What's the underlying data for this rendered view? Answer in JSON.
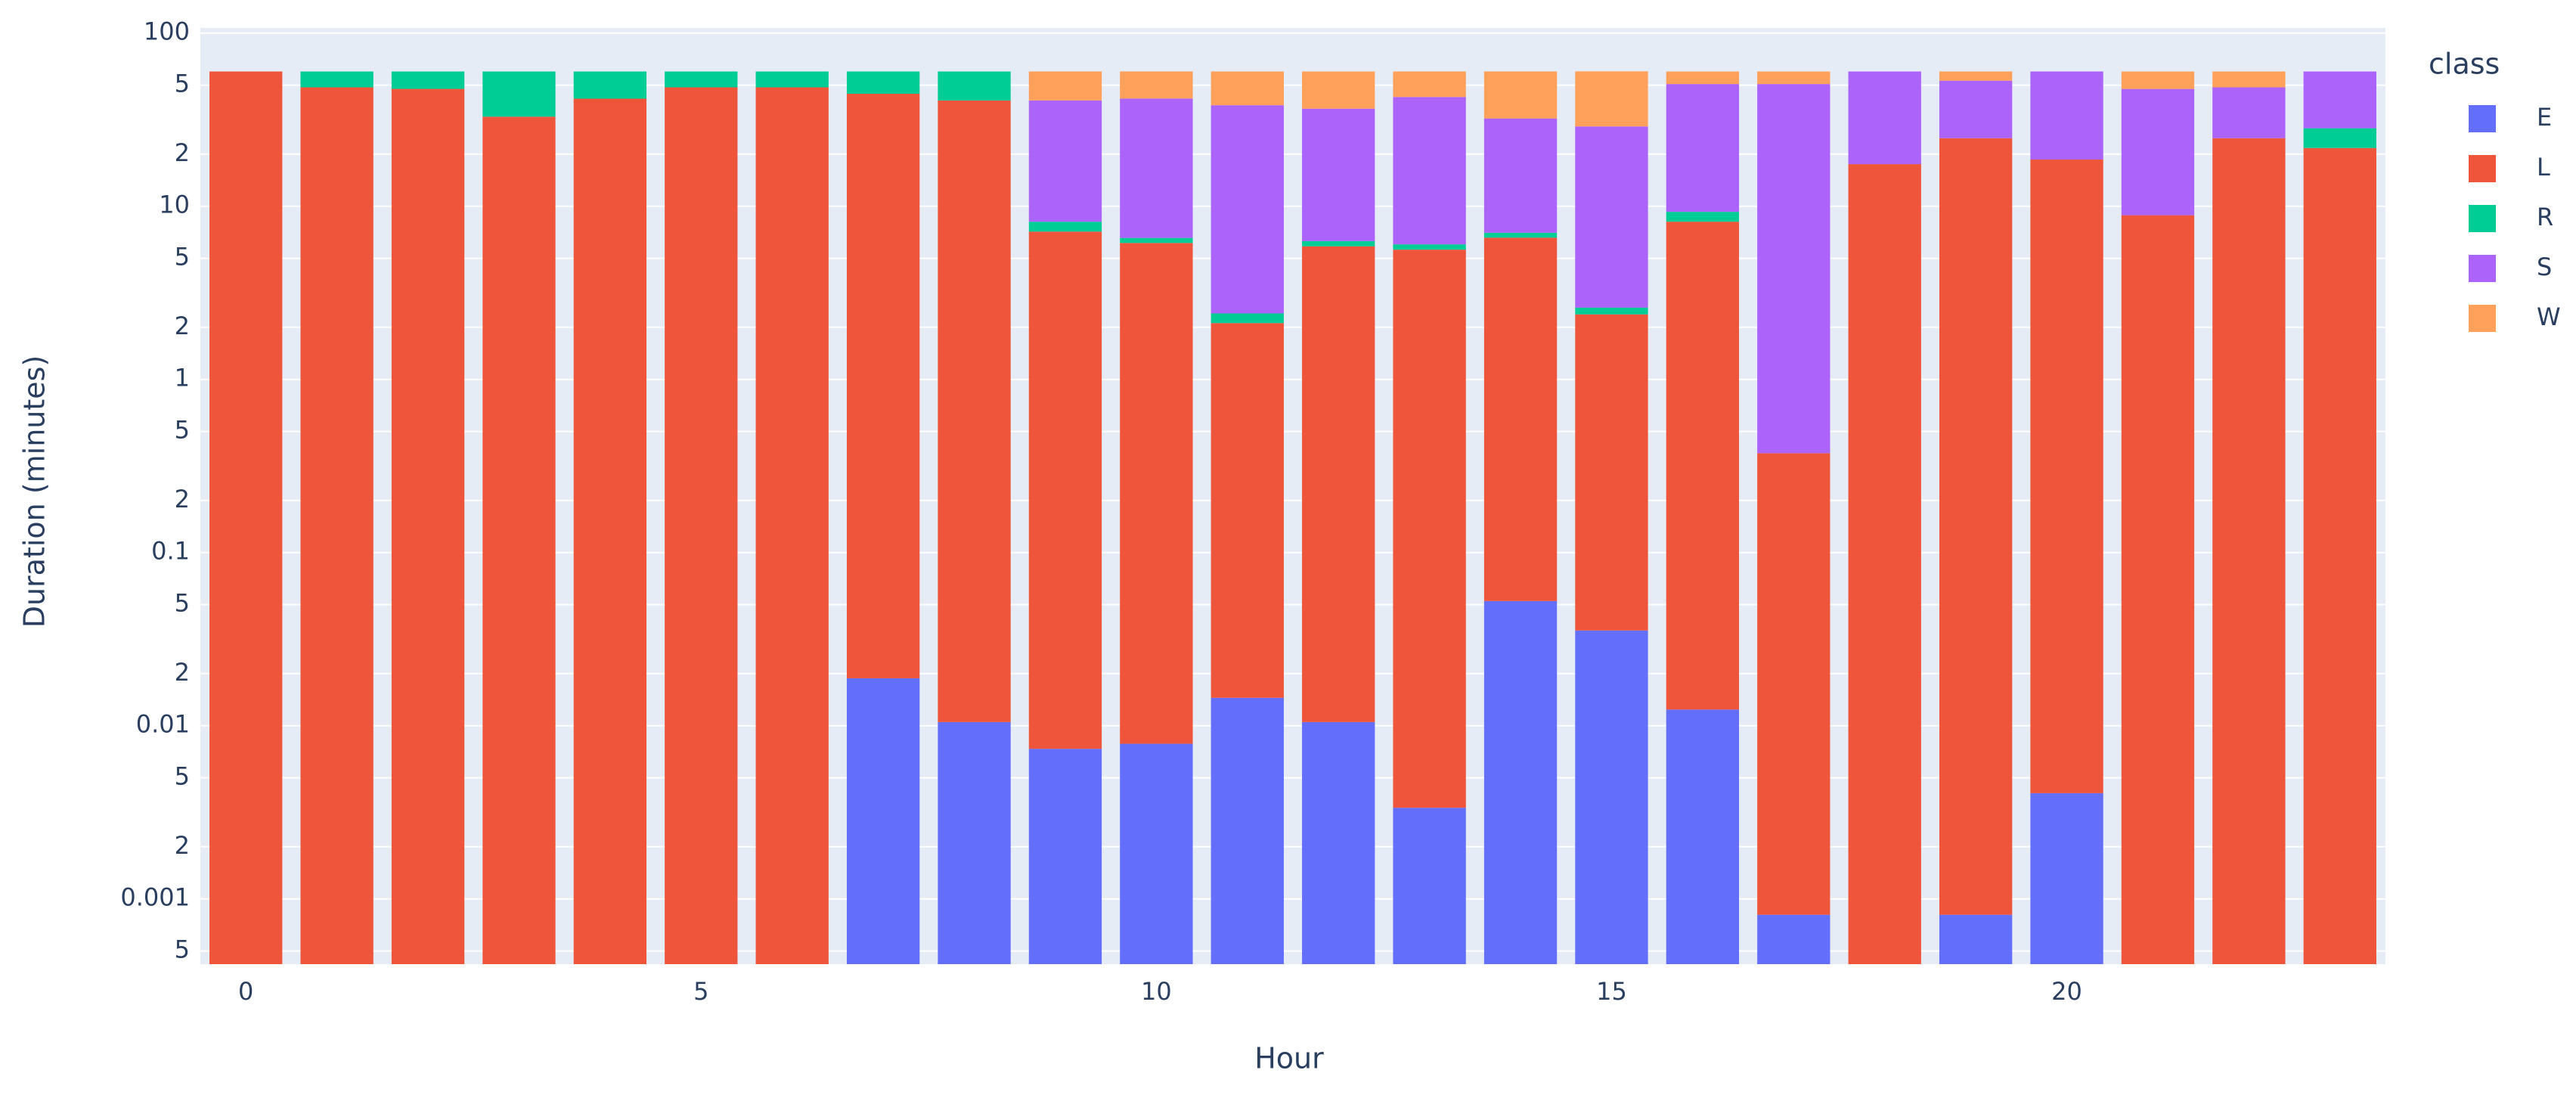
{
  "chart_data": {
    "type": "bar",
    "stacked": true,
    "x_label": "Hour",
    "y_label": "Duration (minutes)",
    "legend_title": "class",
    "legend_position": "right",
    "log_y": true,
    "grid": true,
    "categories": [
      0,
      1,
      2,
      3,
      4,
      5,
      6,
      7,
      8,
      9,
      10,
      11,
      12,
      13,
      14,
      15,
      16,
      17,
      18,
      19,
      20,
      21,
      22,
      23
    ],
    "xlim": [
      -0.5,
      23.5
    ],
    "xticks": [
      0,
      5,
      10,
      15,
      20
    ],
    "ylim": [
      0.00042,
      107
    ],
    "yticks": [
      {
        "value": 0.0005,
        "label": "5"
      },
      0.001,
      {
        "value": 0.002,
        "label": "2"
      },
      {
        "value": 0.005,
        "label": "5"
      },
      0.01,
      {
        "value": 0.02,
        "label": "2"
      },
      {
        "value": 0.05,
        "label": "5"
      },
      0.1,
      {
        "value": 0.2,
        "label": "2"
      },
      {
        "value": 0.5,
        "label": "5"
      },
      1,
      {
        "value": 2,
        "label": "2"
      },
      {
        "value": 5,
        "label": "5"
      },
      10,
      {
        "value": 20,
        "label": "2"
      },
      {
        "value": 50,
        "label": "5"
      },
      100
    ],
    "series": [
      {
        "name": "E",
        "color": "#636efa",
        "values": [
          null,
          null,
          null,
          null,
          null,
          null,
          null,
          0.0188,
          0.0105,
          0.00736,
          0.00787,
          0.0145,
          0.0105,
          0.00336,
          0.0525,
          0.0355,
          0.0124,
          0.00081,
          null,
          0.00081,
          0.00408,
          null,
          null,
          null
        ]
      },
      {
        "name": "L",
        "color": "#ef553b",
        "values": [
          60,
          48.6,
          47.6,
          32.9,
          41.8,
          48.6,
          48.6,
          44.6,
          40.8,
          7.13,
          6.13,
          2.1,
          5.86,
          5.61,
          6.53,
          2.34,
          8.13,
          0.374,
          17.5,
          24.7,
          18.6,
          8.87,
          24.7,
          21.7
        ]
      },
      {
        "name": "R",
        "color": "#00cc96",
        "values": [
          null,
          11.4,
          12.4,
          27.1,
          18.2,
          11.4,
          11.4,
          15.4,
          19.2,
          1.0,
          0.42,
          0.29,
          0.42,
          0.41,
          0.45,
          0.22,
          1.14,
          null,
          null,
          null,
          null,
          null,
          null,
          6.5
        ]
      },
      {
        "name": "S",
        "color": "#ab63fa",
        "values": [
          null,
          null,
          null,
          null,
          null,
          null,
          null,
          null,
          null,
          32.7,
          35.3,
          35.9,
          30.3,
          36.7,
          25.1,
          26.3,
          41.5,
          50.4,
          42.5,
          28.4,
          41.4,
          38.7,
          23.9,
          31.8
        ]
      },
      {
        "name": "W",
        "color": "#ffa15a",
        "values": [
          null,
          null,
          null,
          null,
          null,
          null,
          null,
          null,
          null,
          19.2,
          18.2,
          21.7,
          23.4,
          17.3,
          27.9,
          31.2,
          9.2,
          9.2,
          null,
          6.9,
          null,
          12.4,
          11.4,
          null
        ]
      }
    ]
  }
}
